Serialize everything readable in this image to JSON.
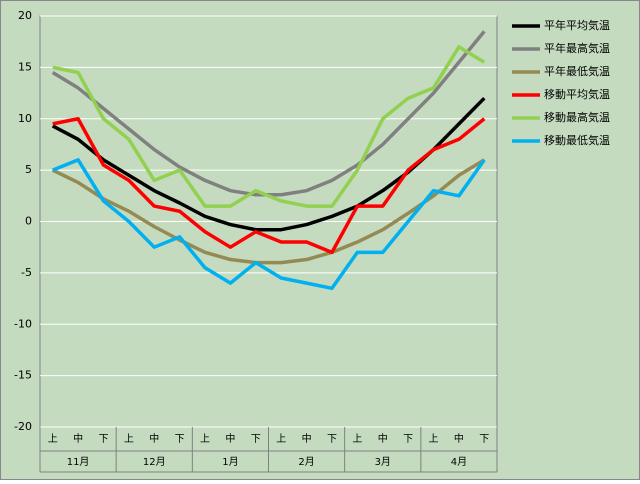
{
  "chart_data": {
    "type": "line",
    "categories": [
      "上",
      "中",
      "下",
      "上",
      "中",
      "下",
      "上",
      "中",
      "下",
      "上",
      "中",
      "下",
      "上",
      "中",
      "下",
      "上",
      "中",
      "下"
    ],
    "category_groups": [
      "11月",
      "12月",
      "1月",
      "2月",
      "3月",
      "4月"
    ],
    "ylim": [
      -20,
      20
    ],
    "yticks": [
      -20,
      -15,
      -10,
      -5,
      0,
      5,
      10,
      15,
      20
    ],
    "grid": true,
    "legend": "right",
    "series": [
      {
        "name": "平年平均気温",
        "color": "#000000",
        "values": [
          9.3,
          8,
          6,
          4.5,
          3,
          1.8,
          0.5,
          -0.3,
          -0.8,
          -0.8,
          -0.3,
          0.5,
          1.5,
          3,
          4.8,
          7,
          9.5,
          12
        ]
      },
      {
        "name": "平年最高気温",
        "color": "#808080",
        "values": [
          14.5,
          13,
          11,
          9,
          7,
          5.3,
          4,
          3,
          2.6,
          2.6,
          3,
          4,
          5.5,
          7.5,
          10,
          12.5,
          15.5,
          18.5
        ]
      },
      {
        "name": "平年最低気温",
        "color": "#948a54",
        "values": [
          5,
          3.8,
          2.2,
          1,
          -0.5,
          -1.8,
          -3,
          -3.7,
          -4,
          -4,
          -3.7,
          -3,
          -2,
          -0.8,
          0.8,
          2.5,
          4.5,
          6
        ]
      },
      {
        "name": "移動平均気温",
        "color": "#ff0000",
        "values": [
          9.5,
          10,
          5.5,
          4,
          1.5,
          1,
          -1,
          -2.5,
          -1,
          -2,
          -2,
          -3,
          1.5,
          1.5,
          5,
          7,
          8,
          10
        ]
      },
      {
        "name": "移動最高気温",
        "color": "#92d050",
        "values": [
          15,
          14.5,
          10,
          8,
          4,
          5,
          1.5,
          1.5,
          3,
          2,
          1.5,
          1.5,
          5,
          10,
          12,
          13,
          17,
          15.5
        ]
      },
      {
        "name": "移動最低気温",
        "color": "#00b0f0",
        "values": [
          5,
          6,
          2,
          0,
          -2.5,
          -1.5,
          -4.5,
          -6,
          -4,
          -5.5,
          -6,
          -6.5,
          -3,
          -3,
          0,
          3,
          2.5,
          6
        ]
      }
    ]
  }
}
